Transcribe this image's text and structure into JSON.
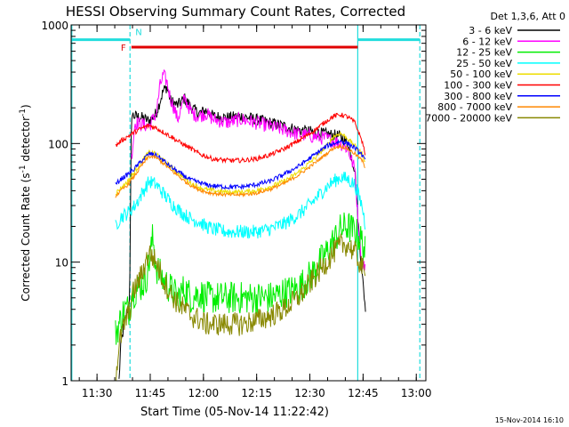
{
  "chart_data": {
    "type": "line",
    "title": "HESSI Observing Summary Count Rates, Corrected",
    "xlabel": "Start Time (05-Nov-14 11:22:42)",
    "ylabel_main": "Corrected Count Rate (s",
    "ylabel_sup1": "-1",
    "ylabel_mid": " detector",
    "ylabel_sup2": "-1",
    "ylabel_end": ")",
    "timestamp": "15-Nov-2014 16:10",
    "x_unit": "minutes after 11:22:42",
    "xlim": [
      0,
      100
    ],
    "y_scale": "log",
    "ylim": [
      1,
      1000
    ],
    "x_ticks": [
      {
        "label": "11:30",
        "value": 7.3
      },
      {
        "label": "11:45",
        "value": 22.3
      },
      {
        "label": "12:00",
        "value": 37.3
      },
      {
        "label": "12:15",
        "value": 52.3
      },
      {
        "label": "12:30",
        "value": 67.3
      },
      {
        "label": "12:45",
        "value": 82.3
      },
      {
        "label": "13:00",
        "value": 97.3
      }
    ],
    "y_ticks": [
      {
        "label": "1",
        "value": 1
      },
      {
        "label": "10",
        "value": 10
      },
      {
        "label": "100",
        "value": 100
      },
      {
        "label": "1000",
        "value": 1000
      }
    ],
    "legend": {
      "header": "Det 1,3,6, Att 0",
      "position": "top-right"
    },
    "annotations": {
      "flare_label": "F",
      "night_label": "N",
      "flare_bar": {
        "x_start": 17.0,
        "x_end": 80.8,
        "y": 650,
        "color": "#e00000"
      },
      "night_bars": [
        {
          "x_start": 0.0,
          "x_end": 16.6,
          "y": 750
        },
        {
          "x_start": 80.8,
          "x_end": 98.3,
          "y": 750
        }
      ],
      "night_color": "#22dddd",
      "solid_vlines": [
        0.2,
        80.8
      ],
      "dashed_vlines": [
        16.6,
        98.3
      ]
    },
    "series": [
      {
        "name": "3 - 6 keV",
        "color": "#000000",
        "noise": 0.05,
        "x": [
          13.5,
          14.0,
          15.0,
          16.5,
          17.0,
          18,
          20,
          22,
          24,
          26,
          27,
          28,
          30,
          32,
          34,
          36,
          38,
          40,
          44,
          48,
          52,
          56,
          60,
          64,
          68,
          72,
          76,
          78,
          80,
          81,
          82,
          83
        ],
        "y": [
          1,
          2,
          3,
          5,
          175,
          170,
          165,
          155,
          180,
          280,
          300,
          230,
          210,
          240,
          200,
          180,
          190,
          170,
          165,
          170,
          160,
          150,
          140,
          130,
          125,
          120,
          115,
          100,
          60,
          20,
          8,
          4
        ]
      },
      {
        "name": "6 - 12 keV",
        "color": "#ff00ff",
        "noise": 0.06,
        "x": [
          17.0,
          18,
          20,
          22,
          24,
          25,
          26,
          27,
          28,
          29,
          30,
          32,
          34,
          36,
          38,
          40,
          44,
          48,
          52,
          56,
          60,
          64,
          68,
          72,
          76,
          78,
          80,
          81,
          82,
          83
        ],
        "y": [
          75,
          150,
          145,
          140,
          180,
          300,
          380,
          330,
          240,
          200,
          160,
          240,
          180,
          170,
          180,
          160,
          150,
          160,
          150,
          140,
          130,
          120,
          115,
          110,
          100,
          90,
          60,
          20,
          10,
          9
        ]
      },
      {
        "name": "12 - 25 keV",
        "color": "#00ee00",
        "noise": 0.14,
        "x": [
          12.5,
          13.5,
          15,
          16.6,
          17,
          19,
          21,
          22,
          23,
          24,
          26,
          28,
          30,
          32,
          34,
          36,
          38,
          40,
          44,
          48,
          52,
          56,
          60,
          64,
          68,
          72,
          76,
          78,
          80,
          82,
          83
        ],
        "y": [
          2.5,
          3,
          4,
          4,
          5.5,
          6,
          7,
          10,
          16,
          9,
          7,
          6,
          5,
          6,
          5,
          5.5,
          5,
          5,
          5,
          5,
          5,
          5,
          5.5,
          6,
          8,
          12,
          19,
          20,
          18,
          15,
          12
        ]
      },
      {
        "name": "25 - 50 keV",
        "color": "#00ffff",
        "noise": 0.06,
        "x": [
          12.5,
          14,
          16,
          18,
          20,
          22,
          24,
          26,
          28,
          30,
          32,
          34,
          36,
          38,
          40,
          44,
          48,
          52,
          56,
          60,
          64,
          68,
          72,
          74,
          76,
          78,
          80,
          82,
          83
        ],
        "y": [
          20,
          24,
          26,
          30,
          38,
          48,
          45,
          38,
          32,
          28,
          25,
          23,
          22,
          20,
          19,
          18,
          18,
          18,
          19,
          21,
          25,
          32,
          43,
          48,
          52,
          50,
          45,
          30,
          20
        ]
      },
      {
        "name": "50 - 100 keV",
        "color": "#eedd00",
        "noise": 0.02,
        "x": [
          12.5,
          14,
          16,
          18,
          20,
          22,
          24,
          26,
          28,
          30,
          32,
          34,
          36,
          38,
          40,
          44,
          48,
          52,
          56,
          60,
          64,
          68,
          72,
          74,
          76,
          78,
          80,
          82,
          83
        ],
        "y": [
          38,
          42,
          48,
          58,
          72,
          84,
          82,
          72,
          64,
          57,
          51,
          46,
          43,
          41,
          40,
          39,
          39,
          40,
          43,
          48,
          57,
          72,
          95,
          115,
          122,
          110,
          95,
          82,
          70
        ]
      },
      {
        "name": "100 - 300 keV",
        "color": "#ff0000",
        "noise": 0.02,
        "x": [
          12.5,
          14,
          16,
          18,
          20,
          22,
          24,
          26,
          28,
          30,
          32,
          34,
          36,
          38,
          40,
          44,
          48,
          52,
          56,
          60,
          64,
          68,
          72,
          74,
          76,
          78,
          80,
          82,
          83
        ],
        "y": [
          95,
          105,
          115,
          125,
          135,
          142,
          135,
          125,
          115,
          105,
          97,
          90,
          82,
          78,
          74,
          72,
          72,
          74,
          80,
          90,
          105,
          125,
          155,
          170,
          175,
          168,
          150,
          105,
          80
        ]
      },
      {
        "name": "300 - 800 keV",
        "color": "#0000ff",
        "noise": 0.02,
        "x": [
          12.5,
          14,
          16,
          18,
          20,
          22,
          24,
          26,
          28,
          30,
          32,
          34,
          36,
          38,
          40,
          44,
          48,
          52,
          56,
          60,
          64,
          68,
          72,
          74,
          76,
          78,
          80,
          82,
          83
        ],
        "y": [
          45,
          50,
          55,
          62,
          72,
          82,
          80,
          72,
          64,
          58,
          53,
          49,
          47,
          45,
          44,
          43,
          43,
          45,
          48,
          55,
          64,
          78,
          95,
          100,
          105,
          100,
          92,
          80,
          70
        ]
      },
      {
        "name": "800 - 7000 keV",
        "color": "#ff8800",
        "noise": 0.015,
        "x": [
          12.5,
          14,
          16,
          18,
          20,
          22,
          24,
          26,
          28,
          30,
          32,
          34,
          36,
          38,
          40,
          44,
          48,
          52,
          56,
          60,
          64,
          68,
          72,
          74,
          76,
          78,
          80,
          82,
          83
        ],
        "y": [
          36,
          40,
          45,
          54,
          66,
          78,
          76,
          68,
          60,
          54,
          48,
          44,
          41,
          39,
          38,
          37,
          37,
          38,
          41,
          46,
          54,
          66,
          82,
          92,
          95,
          90,
          82,
          72,
          62
        ]
      },
      {
        "name": "7000 - 20000 keV",
        "color": "#888800",
        "noise": 0.1,
        "x": [
          12.5,
          13.5,
          15,
          16.6,
          17,
          18,
          20,
          21,
          22,
          23,
          24,
          26,
          28,
          30,
          32,
          34,
          36,
          38,
          40,
          44,
          48,
          52,
          56,
          60,
          64,
          68,
          72,
          74,
          76,
          78,
          80,
          82,
          83
        ],
        "y": [
          1,
          2,
          3,
          4,
          5,
          6,
          8,
          10,
          12,
          11,
          10,
          7,
          5.5,
          4.5,
          4,
          3.5,
          3.3,
          3,
          3,
          3,
          3,
          3.2,
          3.5,
          4,
          5,
          7,
          10,
          12,
          14,
          14,
          12,
          9,
          7
        ]
      }
    ]
  }
}
